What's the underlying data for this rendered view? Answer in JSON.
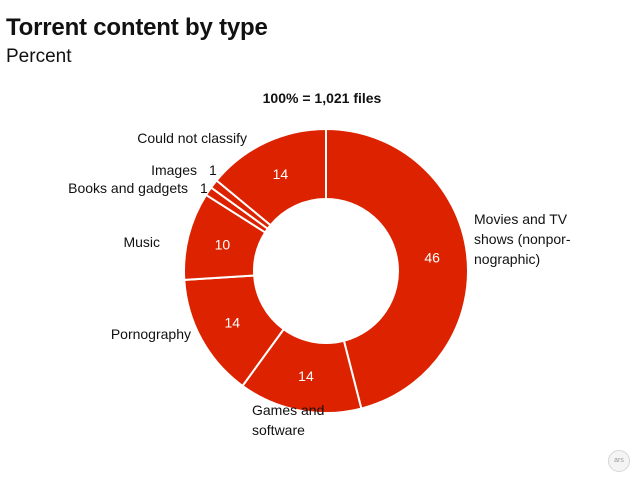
{
  "title": "Torrent content by type",
  "subtitle": "Percent",
  "total_label": "100% = 1,021 files",
  "badge": "ars",
  "chart_data": {
    "type": "pie",
    "donut": true,
    "unit": "Percent",
    "total_files": 1021,
    "color": "#dd2200",
    "slices": [
      {
        "label": "Movies and TV shows (nonpornographic)",
        "label_lines": [
          "Movies and TV",
          "shows (nonpor-",
          "nographic)"
        ],
        "value": 46
      },
      {
        "label": "Games and software",
        "label_lines": [
          "Games and",
          "software"
        ],
        "value": 14
      },
      {
        "label": "Pornography",
        "label_lines": [
          "Pornography"
        ],
        "value": 14
      },
      {
        "label": "Music",
        "label_lines": [
          "Music"
        ],
        "value": 10
      },
      {
        "label": "Books and gadgets",
        "label_lines": [
          "Books and gadgets"
        ],
        "value": 1
      },
      {
        "label": "Images",
        "label_lines": [
          "Images"
        ],
        "value": 1
      },
      {
        "label": "Could not classify",
        "label_lines": [
          "Could not classify"
        ],
        "value": 14
      }
    ]
  }
}
